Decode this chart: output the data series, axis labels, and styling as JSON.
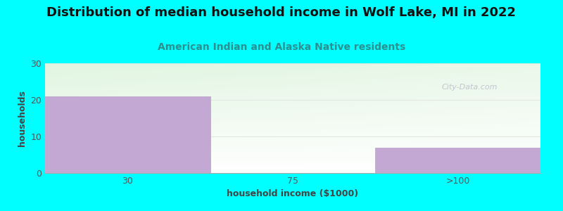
{
  "title": "Distribution of median household income in Wolf Lake, MI in 2022",
  "subtitle": "American Indian and Alaska Native residents",
  "categories": [
    "30",
    "75",
    ">100"
  ],
  "values": [
    21,
    0,
    7
  ],
  "bar_color": "#C4A8D4",
  "background_color": "#00FFFF",
  "xlabel": "household income ($1000)",
  "ylabel": "households",
  "ylim": [
    0,
    30
  ],
  "yticks": [
    0,
    10,
    20,
    30
  ],
  "title_fontsize": 13,
  "subtitle_fontsize": 10,
  "subtitle_color": "#2A9090",
  "axis_label_fontsize": 9,
  "watermark": "City-Data.com",
  "watermark_color": "#BBBBCC",
  "grid_color": "#E0E8E0",
  "bar_edge_color": "#B8A0CC"
}
